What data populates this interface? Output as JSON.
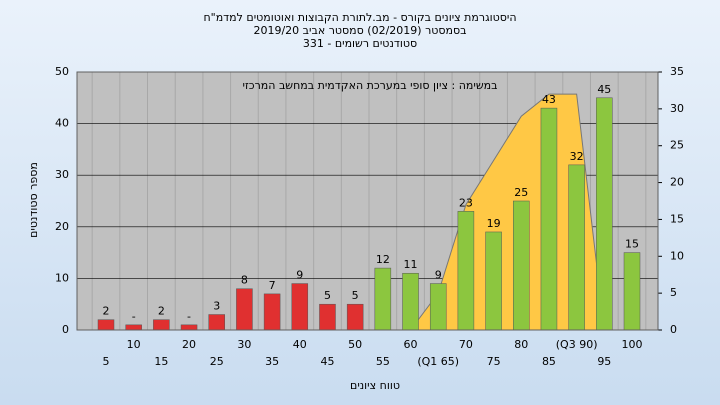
{
  "chart_data": {
    "type": "bar",
    "title_lines": [
      "היסטוגרמת ציונים בקורס - מב.לתורת הקבוצות ואוטומטים למדמ\"ח",
      "בסמסטר  (02/2019)  סמסטר אביב  2019/20",
      "סטודנטים רשומים - 331"
    ],
    "annotation": "במשימה : ציון סופי במערכת האקדמית במחשב המרכזי",
    "xlabel": "טווח ציונים",
    "ylabel": "מספר סטודנטים",
    "categories": [
      "5",
      "10",
      "15",
      "20",
      "25",
      "30",
      "35",
      "40",
      "45",
      "50",
      "55",
      "60",
      "(Q1 65)",
      "70",
      "75",
      "80",
      "85",
      "(Q3 90)",
      "95",
      "100"
    ],
    "series": [
      {
        "type": "bar",
        "values": [
          2,
          1,
          2,
          1,
          3,
          8,
          7,
          9,
          5,
          5,
          12,
          11,
          9,
          23,
          19,
          25,
          43,
          32,
          45,
          15
        ],
        "value_labels": [
          "2",
          "-",
          "2",
          "-",
          "3",
          "8",
          "7",
          "9",
          "5",
          "5",
          "12",
          "11",
          "9",
          "23",
          "19",
          "25",
          "43",
          "32",
          "45",
          "15"
        ],
        "colors": [
          "#e03030",
          "#e03030",
          "#e03030",
          "#e03030",
          "#e03030",
          "#e03030",
          "#e03030",
          "#e03030",
          "#e03030",
          "#e03030",
          "#8cc63f",
          "#8cc63f",
          "#8cc63f",
          "#8cc63f",
          "#8cc63f",
          "#8cc63f",
          "#8cc63f",
          "#8cc63f",
          "#8cc63f",
          "#8cc63f"
        ]
      },
      {
        "type": "area",
        "axis": "y2",
        "color": "#ffc845",
        "values": [
          null,
          null,
          null,
          null,
          null,
          null,
          null,
          null,
          null,
          null,
          null,
          0,
          5,
          17,
          23,
          29,
          32,
          32,
          0,
          null
        ]
      }
    ],
    "ylim": [
      0,
      50
    ],
    "yticks": [
      0,
      10,
      20,
      30,
      40,
      50
    ],
    "y2lim": [
      0,
      35
    ],
    "y2ticks": [
      0,
      5,
      10,
      15,
      20,
      25,
      30,
      35
    ],
    "grid": true
  }
}
